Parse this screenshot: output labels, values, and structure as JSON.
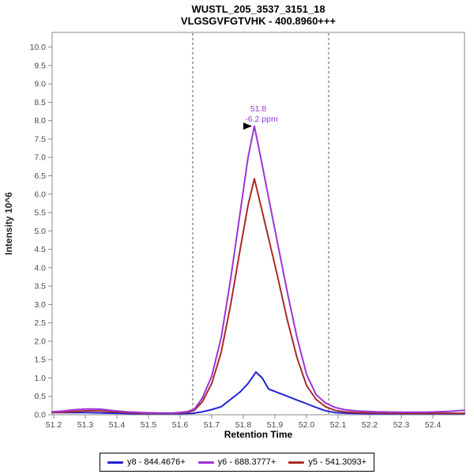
{
  "chart_data": {
    "type": "line",
    "title_line1": "WUSTL_205_3537_3151_18",
    "title_line2": "VLGSGVFGTVHK - 400.8960+++",
    "xlabel": "Retention Time",
    "ylabel": "Intensity 10^6",
    "xlim": [
      51.195,
      52.5
    ],
    "ylim": [
      0,
      10.4
    ],
    "x_tick_labels": [
      "51.2",
      "51.3",
      "51.4",
      "51.5",
      "51.6",
      "51.7",
      "51.8",
      "51.9",
      "52.0",
      "52.1",
      "52.2",
      "52.3",
      "52.4"
    ],
    "y_tick_labels": [
      "0.0",
      "0.5",
      "1.0",
      "1.5",
      "2.0",
      "2.5",
      "3.0",
      "3.5",
      "4.0",
      "4.5",
      "5.0",
      "5.5",
      "6.0",
      "6.5",
      "7.0",
      "7.5",
      "8.0",
      "8.5",
      "9.0",
      "9.5",
      "10.0"
    ],
    "grid": false,
    "legend_position": "bottom-center",
    "boundaries": [
      51.64,
      52.07
    ],
    "boundary_color": "#555555",
    "frame_color": "#888888",
    "tick_label_color": "#4a4a4a",
    "annotation": {
      "rt_label": "51.8",
      "ppm_label": "-6.2 ppm",
      "x": 51.84,
      "y": 7.85,
      "color": "#9b35d9",
      "arrow_color": "#000000"
    },
    "series": [
      {
        "name": "y8 - 844.4676+",
        "color": "#2222d6",
        "front": false,
        "points": [
          [
            51.195,
            0.06
          ],
          [
            51.25,
            0.06
          ],
          [
            51.3,
            0.06
          ],
          [
            51.35,
            0.05
          ],
          [
            51.4,
            0.04
          ],
          [
            51.45,
            0.03
          ],
          [
            51.5,
            0.03
          ],
          [
            51.55,
            0.03
          ],
          [
            51.6,
            0.03
          ],
          [
            51.64,
            0.04
          ],
          [
            51.67,
            0.08
          ],
          [
            51.7,
            0.14
          ],
          [
            51.73,
            0.22
          ],
          [
            51.76,
            0.42
          ],
          [
            51.79,
            0.62
          ],
          [
            51.815,
            0.85
          ],
          [
            51.84,
            1.16
          ],
          [
            51.86,
            1.0
          ],
          [
            51.88,
            0.7
          ],
          [
            51.91,
            0.6
          ],
          [
            51.94,
            0.5
          ],
          [
            51.97,
            0.4
          ],
          [
            52.0,
            0.3
          ],
          [
            52.03,
            0.2
          ],
          [
            52.06,
            0.11
          ],
          [
            52.09,
            0.06
          ],
          [
            52.13,
            0.04
          ],
          [
            52.2,
            0.03
          ],
          [
            52.3,
            0.03
          ],
          [
            52.4,
            0.03
          ],
          [
            52.5,
            0.03
          ]
        ]
      },
      {
        "name": "y6 - 688.3777+",
        "color": "#9b35d9",
        "front": true,
        "points": [
          [
            51.195,
            0.08
          ],
          [
            51.23,
            0.1
          ],
          [
            51.27,
            0.14
          ],
          [
            51.31,
            0.16
          ],
          [
            51.35,
            0.15
          ],
          [
            51.39,
            0.11
          ],
          [
            51.43,
            0.08
          ],
          [
            51.48,
            0.06
          ],
          [
            51.53,
            0.05
          ],
          [
            51.58,
            0.05
          ],
          [
            51.62,
            0.08
          ],
          [
            51.645,
            0.15
          ],
          [
            51.67,
            0.45
          ],
          [
            51.7,
            1.05
          ],
          [
            51.73,
            2.1
          ],
          [
            51.76,
            3.7
          ],
          [
            51.79,
            5.5
          ],
          [
            51.815,
            7.0
          ],
          [
            51.835,
            7.85
          ],
          [
            51.855,
            7.0
          ],
          [
            51.88,
            5.9
          ],
          [
            51.91,
            4.6
          ],
          [
            51.94,
            3.3
          ],
          [
            51.97,
            2.1
          ],
          [
            52.0,
            1.1
          ],
          [
            52.03,
            0.55
          ],
          [
            52.06,
            0.32
          ],
          [
            52.09,
            0.2
          ],
          [
            52.12,
            0.14
          ],
          [
            52.16,
            0.1
          ],
          [
            52.22,
            0.08
          ],
          [
            52.3,
            0.07
          ],
          [
            52.38,
            0.07
          ],
          [
            52.45,
            0.09
          ],
          [
            52.5,
            0.12
          ]
        ]
      },
      {
        "name": "y5 - 541.3093+",
        "color": "#ab2a28",
        "front": false,
        "points": [
          [
            51.195,
            0.06
          ],
          [
            51.23,
            0.07
          ],
          [
            51.27,
            0.09
          ],
          [
            51.31,
            0.11
          ],
          [
            51.35,
            0.1
          ],
          [
            51.39,
            0.08
          ],
          [
            51.43,
            0.06
          ],
          [
            51.48,
            0.04
          ],
          [
            51.53,
            0.04
          ],
          [
            51.58,
            0.04
          ],
          [
            51.62,
            0.06
          ],
          [
            51.645,
            0.12
          ],
          [
            51.67,
            0.35
          ],
          [
            51.7,
            0.85
          ],
          [
            51.73,
            1.7
          ],
          [
            51.76,
            3.0
          ],
          [
            51.79,
            4.5
          ],
          [
            51.815,
            5.7
          ],
          [
            51.835,
            6.42
          ],
          [
            51.855,
            5.7
          ],
          [
            51.88,
            4.8
          ],
          [
            51.91,
            3.7
          ],
          [
            51.94,
            2.55
          ],
          [
            51.97,
            1.55
          ],
          [
            52.0,
            0.8
          ],
          [
            52.03,
            0.42
          ],
          [
            52.06,
            0.22
          ],
          [
            52.09,
            0.12
          ],
          [
            52.12,
            0.08
          ],
          [
            52.16,
            0.06
          ],
          [
            52.22,
            0.05
          ],
          [
            52.3,
            0.04
          ],
          [
            52.4,
            0.04
          ],
          [
            52.5,
            0.04
          ]
        ]
      }
    ]
  }
}
